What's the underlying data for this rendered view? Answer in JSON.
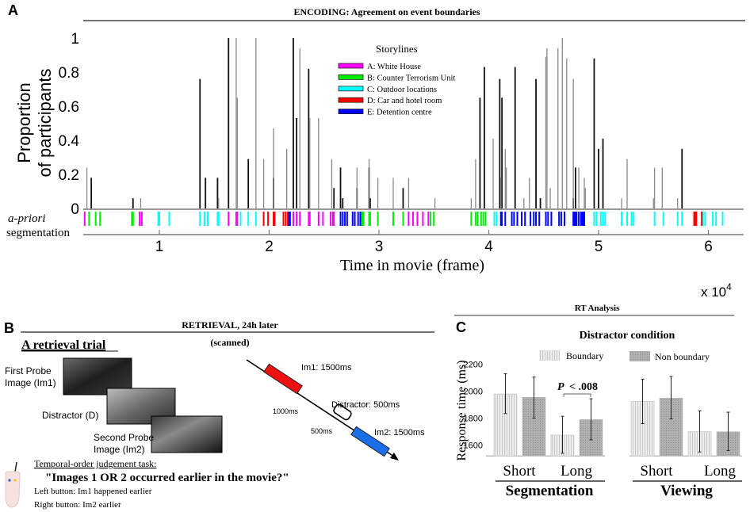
{
  "panel_a": {
    "letter": "A",
    "title": "ENCODING: Agreement on event boundaries",
    "ylabel_line1": "Proportion",
    "ylabel_line2": "of participants",
    "seg_label_line1": "a-priori",
    "seg_label_line2": "segmentation",
    "legend_title": "Storylines",
    "legend": [
      {
        "key": "A",
        "label": "A: White House",
        "color": "#ff00ff"
      },
      {
        "key": "B",
        "label": "B: Counter Terrorism Unit",
        "color": "#00ee00"
      },
      {
        "key": "C",
        "label": "C: Outdoor locations",
        "color": "#00ffff"
      },
      {
        "key": "D",
        "label": "D: Car and hotel room",
        "color": "#ff0000"
      },
      {
        "key": "E",
        "label": "E: Detention  centre",
        "color": "#0000ff"
      }
    ]
  },
  "panel_b": {
    "letter": "B",
    "title": "RETRIEVAL, 24h later",
    "subtitle": "(scanned)",
    "trial_heading": "A retrieval trial",
    "image_labels": {
      "im1_line1": "First Probe",
      "im1_line2": "Image (Im1)",
      "distractor": "Distractor (D)",
      "im2_line1": "Second Probe",
      "im2_line2": "Image (Im2)"
    },
    "timeline": {
      "im1": "Im1: 1500ms",
      "gap1": "1000ms",
      "distractor": "Distractor: 500ms",
      "gap2": "500ms",
      "im2": "Im2: 1500ms",
      "im1_color": "#ee1111",
      "im2_color": "#1a6ee8"
    },
    "task_heading": "Temporal-order judgement task:",
    "question": "\"Images 1 OR 2 occurred earlier in the movie?\"",
    "left_button": "Left button: Im1 happened  earlier",
    "right_button": "Right button: Im2 earlier"
  },
  "panel_c": {
    "letter": "C",
    "title": "RT Analysis"
  },
  "chart_data": [
    {
      "type": "bar",
      "subtype": "stem",
      "title": "ENCODING: Agreement on event boundaries",
      "xlabel": "Time in movie (frame)",
      "x_multiplier": "x 10",
      "x_multiplier_exp": "4",
      "ylabel": "Proportion of participants",
      "xlim": [
        0.3,
        6.3
      ],
      "ylim": [
        0,
        1
      ],
      "xticks": [
        "1",
        "2",
        "3",
        "4",
        "5",
        "6"
      ],
      "yticks": [
        "0",
        "0.2",
        "0.4",
        "0.6",
        "0.8",
        "1"
      ],
      "grid": false,
      "legend_position": "top-center",
      "series": [
        {
          "color": "#111111",
          "points": [
            [
              0.38,
              0.18
            ],
            [
              0.76,
              0.06
            ],
            [
              1.37,
              0.76
            ],
            [
              1.42,
              0.18
            ],
            [
              1.53,
              0.18
            ],
            [
              1.63,
              1
            ],
            [
              1.81,
              0.29
            ],
            [
              2.04,
              0.18
            ],
            [
              2.22,
              1
            ],
            [
              2.25,
              0.53
            ],
            [
              2.36,
              0.82
            ],
            [
              2.59,
              0.12
            ],
            [
              2.65,
              0.24
            ],
            [
              2.67,
              0.06
            ],
            [
              2.8,
              0.12
            ],
            [
              2.91,
              0.24
            ],
            [
              2.92,
              0.06
            ],
            [
              3.22,
              0.12
            ],
            [
              3.92,
              0.65
            ],
            [
              3.96,
              0.83
            ],
            [
              4.1,
              0.76
            ],
            [
              4.12,
              0.65
            ],
            [
              4.24,
              0.83
            ],
            [
              4.43,
              0.76
            ],
            [
              4.47,
              0.06
            ],
            [
              4.77,
              0.06
            ],
            [
              4.79,
              0.24
            ],
            [
              4.96,
              0.88
            ],
            [
              5.0,
              0.35
            ],
            [
              5.04,
              0.41
            ],
            [
              5.76,
              0.35
            ]
          ]
        },
        {
          "color": "#8a8a8a",
          "points": [
            [
              0.34,
              0.24
            ],
            [
              0.83,
              0.06
            ],
            [
              1.54,
              0.06
            ],
            [
              1.7,
              1
            ],
            [
              1.71,
              0.65
            ],
            [
              1.88,
              1
            ],
            [
              1.95,
              0.29
            ],
            [
              2.04,
              0.47
            ],
            [
              2.16,
              0.35
            ],
            [
              2.28,
              0.94
            ],
            [
              2.37,
              0.53
            ],
            [
              2.45,
              0.53
            ],
            [
              2.57,
              0.29
            ],
            [
              2.8,
              0.24
            ],
            [
              2.91,
              0.29
            ],
            [
              2.99,
              0.18
            ],
            [
              3.13,
              0.18
            ],
            [
              3.27,
              0.18
            ],
            [
              3.51,
              0.06
            ],
            [
              3.84,
              0.06
            ],
            [
              3.88,
              0.29
            ],
            [
              4.04,
              0.41
            ],
            [
              4.11,
              0.18
            ],
            [
              4.15,
              0.35
            ],
            [
              4.16,
              0.24
            ],
            [
              4.32,
              0.06
            ],
            [
              4.37,
              0.18
            ],
            [
              4.52,
              0.89
            ],
            [
              4.53,
              0.94
            ],
            [
              4.56,
              0.12
            ],
            [
              4.63,
              0.94
            ],
            [
              4.67,
              1
            ],
            [
              4.71,
              0.88
            ],
            [
              4.77,
              0.76
            ],
            [
              4.82,
              0.24
            ],
            [
              4.87,
              0.18
            ],
            [
              4.88,
              0.12
            ],
            [
              5.21,
              0.06
            ],
            [
              5.26,
              0.29
            ],
            [
              5.5,
              0.06
            ],
            [
              5.51,
              0.24
            ],
            [
              5.58,
              0.24
            ],
            [
              5.72,
              0.06
            ]
          ]
        }
      ],
      "segmentation": {
        "A": [
          0.32,
          0.82,
          0.84,
          1.63,
          1.7,
          1.71,
          2.22,
          2.25,
          2.28,
          2.36,
          2.37,
          2.45,
          2.49,
          2.56,
          2.58,
          2.59,
          3.27,
          3.31,
          3.35,
          3.4,
          3.45
        ],
        "B": [
          0.36,
          0.42,
          0.46,
          0.75,
          0.76,
          2.84,
          2.85,
          2.86,
          2.91,
          2.92,
          2.99,
          3.13,
          3.22,
          3.47,
          3.5,
          3.84,
          3.88,
          3.9,
          3.93,
          3.95,
          3.97
        ],
        "C": [
          0.99,
          1.0,
          1.09,
          1.37,
          1.41,
          1.44,
          1.53,
          1.54,
          1.74,
          1.81,
          1.88,
          4.05,
          4.07,
          4.96,
          4.98,
          5.02,
          5.04,
          5.06,
          5.21,
          5.26,
          5.3,
          5.32,
          5.51,
          5.59,
          5.72,
          5.76,
          5.95,
          5.97,
          6.04,
          6.07,
          6.13
        ],
        "D": [
          1.95,
          1.99,
          2.04,
          2.05,
          2.13,
          2.15,
          2.17,
          5.87,
          5.88,
          5.89,
          5.94
        ],
        "E": [
          2.18,
          2.19,
          2.65,
          2.67,
          2.69,
          2.71,
          2.76,
          2.78,
          2.81,
          2.83,
          4.11,
          4.12,
          4.15,
          4.21,
          4.23,
          4.26,
          4.3,
          4.33,
          4.38,
          4.41,
          4.43,
          4.46,
          4.52,
          4.54,
          4.57,
          4.64,
          4.66,
          4.69,
          4.77,
          4.78,
          4.79,
          4.8,
          4.82,
          4.84,
          4.85,
          4.86,
          4.87
        ]
      }
    },
    {
      "type": "bar",
      "title": "RT Analysis",
      "ylabel": "Response time (ms)",
      "legend_title": "Distractor condition",
      "legend_position": "top",
      "yticks": [
        "1600",
        "1800",
        "2000",
        "2200"
      ],
      "ylim": [
        1520,
        2250
      ],
      "series_names": [
        "Boundary",
        "Non boundary"
      ],
      "series_colors": [
        "#e4e4e4",
        "#a9a9a9"
      ],
      "annotation": {
        "p_label": "P",
        "text": "< .008"
      },
      "groups": [
        {
          "name": "Segmentation",
          "categories": [
            {
              "label": "Short",
              "values": [
                1980,
                1955
              ],
              "errors": [
                [
                  1835,
                  2130
                ],
                [
                  1800,
                  2105
                ]
              ]
            },
            {
              "label": "Long",
              "values": [
                1675,
                1790
              ],
              "errors": [
                [
                  1540,
                  1815
                ],
                [
                  1640,
                  1945
                ]
              ]
            }
          ]
        },
        {
          "name": "Viewing",
          "categories": [
            {
              "label": "Short",
              "values": [
                1925,
                1950
              ],
              "errors": [
                [
                  1760,
                  2090
                ],
                [
                  1795,
                  2110
                ]
              ]
            },
            {
              "label": "Long",
              "values": [
                1700,
                1700
              ],
              "errors": [
                [
                  1550,
                  1855
                ],
                [
                  1560,
                  1845
                ]
              ]
            }
          ]
        }
      ]
    }
  ]
}
